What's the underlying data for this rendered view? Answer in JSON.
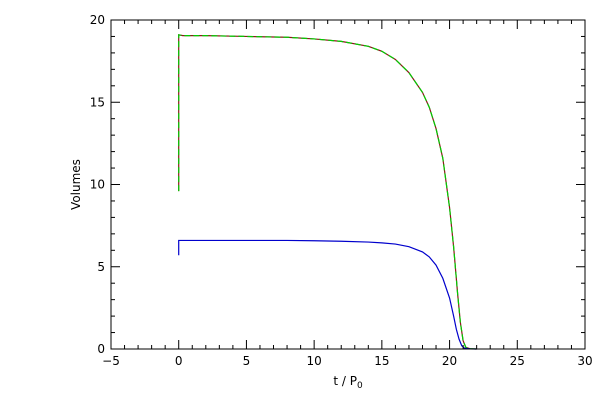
{
  "chart_data": {
    "type": "line",
    "title": "",
    "xlabel": "t / P",
    "xlabel_subscript": "0",
    "ylabel": "Volumes",
    "xlim": [
      -5,
      30
    ],
    "ylim": [
      0,
      20
    ],
    "grid": false,
    "x_ticks": [
      -5,
      0,
      5,
      10,
      15,
      20,
      25,
      30
    ],
    "y_ticks": [
      0,
      5,
      10,
      15,
      20
    ],
    "x_tick_labels": [
      "−5",
      "0",
      "5",
      "10",
      "15",
      "20",
      "25",
      "30"
    ],
    "y_tick_labels": [
      "0",
      "5",
      "10",
      "15",
      "20"
    ],
    "series": [
      {
        "color": "#8b1a1a",
        "dashed": false,
        "x": [
          0,
          0,
          0.3,
          2,
          5,
          8,
          10,
          12,
          14,
          15,
          16,
          17,
          18,
          18.5,
          19,
          19.5,
          20,
          20.3,
          20.6,
          20.8,
          21,
          21.2,
          21.5,
          22
        ],
        "y": [
          9.6,
          19.1,
          19.05,
          19.05,
          19.0,
          18.95,
          18.85,
          18.7,
          18.4,
          18.1,
          17.6,
          16.8,
          15.6,
          14.7,
          13.4,
          11.6,
          8.6,
          6.2,
          3.3,
          1.6,
          0.5,
          0.1,
          0.02,
          0
        ]
      },
      {
        "color": "#00cc00",
        "dashed": true,
        "x": [
          0,
          0,
          0.3,
          2,
          5,
          8,
          10,
          12,
          14,
          15,
          16,
          17,
          18,
          18.5,
          19,
          19.5,
          20,
          20.3,
          20.6,
          20.8,
          21,
          21.2,
          21.5,
          22
        ],
        "y": [
          9.6,
          19.1,
          19.05,
          19.05,
          19.0,
          18.95,
          18.85,
          18.7,
          18.4,
          18.1,
          17.6,
          16.8,
          15.6,
          14.7,
          13.4,
          11.6,
          8.6,
          6.2,
          3.3,
          1.6,
          0.5,
          0.1,
          0.02,
          0
        ]
      },
      {
        "color": "#0000cc",
        "dashed": false,
        "x": [
          0,
          0,
          0.3,
          2,
          5,
          8,
          10,
          12,
          14,
          15,
          16,
          17,
          18,
          18.5,
          19,
          19.5,
          20,
          20.3,
          20.5,
          20.7,
          20.9,
          21.1,
          21.5,
          22
        ],
        "y": [
          5.7,
          6.6,
          6.6,
          6.6,
          6.6,
          6.6,
          6.58,
          6.55,
          6.5,
          6.45,
          6.38,
          6.22,
          5.9,
          5.6,
          5.1,
          4.3,
          3.1,
          2.0,
          1.2,
          0.6,
          0.2,
          0.05,
          0.01,
          0
        ]
      }
    ]
  }
}
